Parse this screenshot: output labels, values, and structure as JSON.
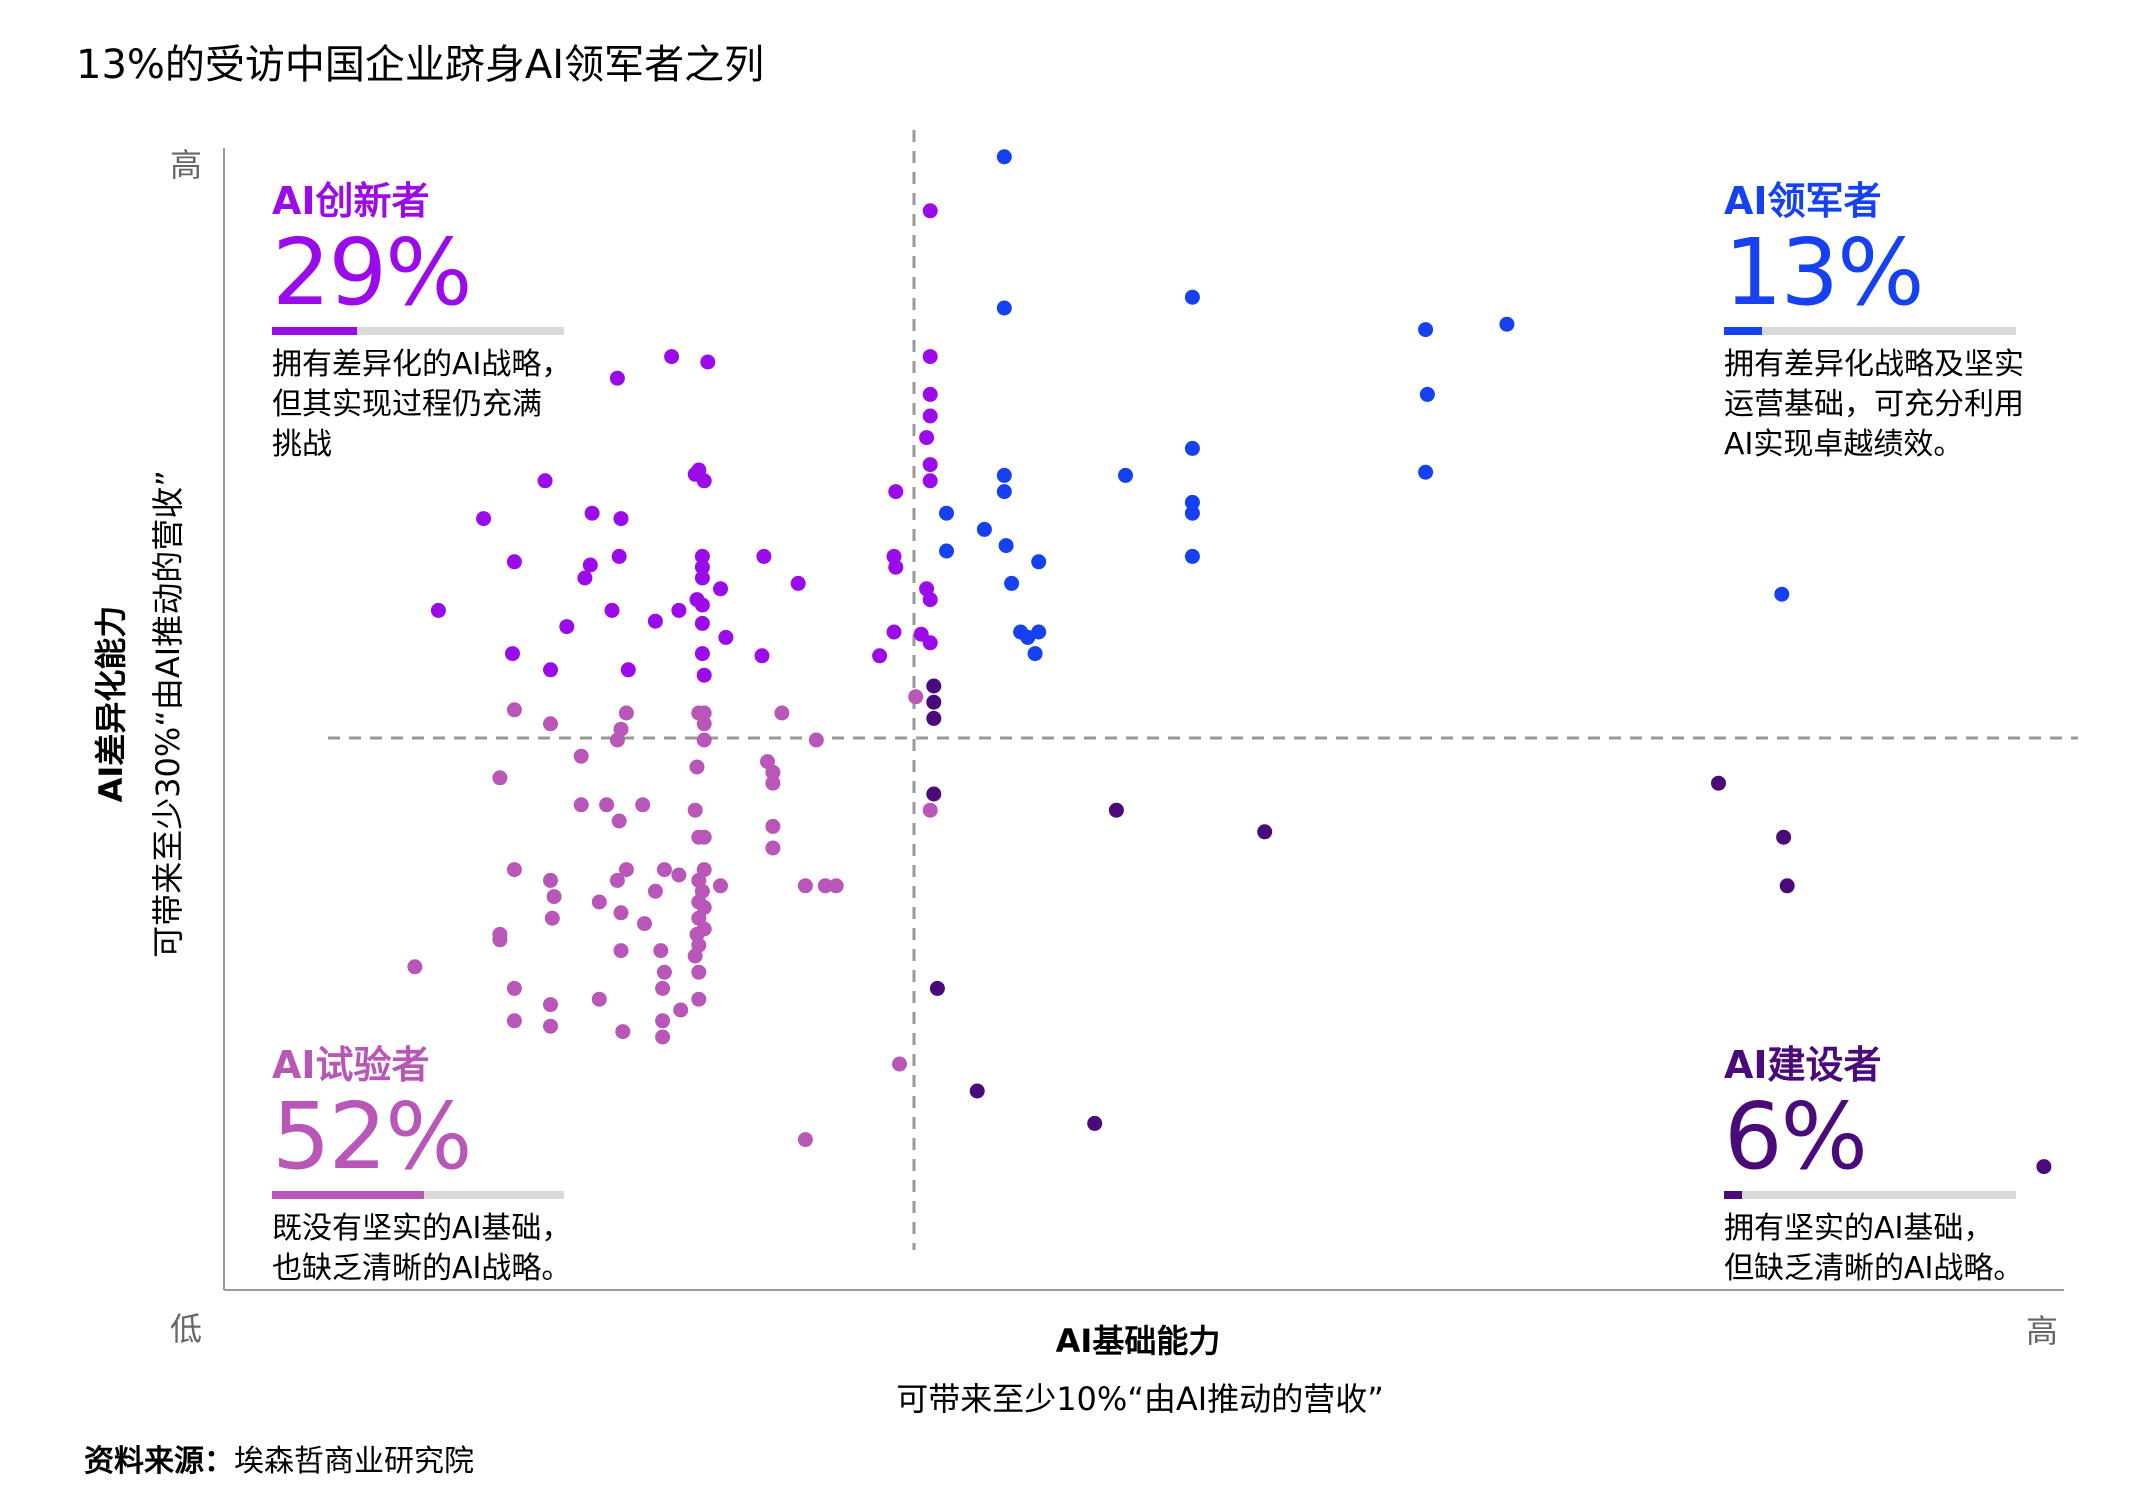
{
  "title": "13%的受访中国企业跻身AI领军者之列",
  "colors": {
    "innovator": "#9b0bea",
    "leader": "#1541f0",
    "experimenter": "#b857b8",
    "builder": "#4a0a7a",
    "bar_bg": "#d9d9d9",
    "divider": "#999999",
    "axis": "#999999"
  },
  "quadrants": {
    "innovator": {
      "label": "AI创新者",
      "pct": "29%",
      "share": 0.29,
      "desc": [
        "拥有差异化的AI战略，",
        "但其实现过程仍充满",
        "挑战"
      ]
    },
    "leader": {
      "label": "AI领军者",
      "pct": "13%",
      "share": 0.13,
      "desc": [
        "拥有差异化战略及坚实",
        "运营基础，可充分利用",
        "AI实现卓越绩效。"
      ]
    },
    "experimenter": {
      "label": "AI试验者",
      "pct": "52%",
      "share": 0.52,
      "desc": [
        "既没有坚实的AI基础，",
        "也缺乏清晰的AI战略。"
      ]
    },
    "builder": {
      "label": "AI建设者",
      "pct": "6%",
      "share": 0.06,
      "desc": [
        "拥有坚实的AI基础，",
        "但缺乏清晰的AI战略。"
      ]
    }
  },
  "axes": {
    "y_high": "高",
    "low": "低",
    "x_high": "高",
    "y_label_bold": "AI差异化能力",
    "y_label_sub": "可带来至少30%“由AI推动的营收”",
    "x_label_bold": "AI基础能力",
    "x_label_sub": "可带来至少10%“由AI推动的营收”"
  },
  "source": {
    "label": "资料来源：",
    "text": "埃森哲商业研究院"
  },
  "chart_data": {
    "type": "scatter",
    "title": "13%的受访中国企业跻身AI领军者之列",
    "xlabel": "AI基础能力",
    "ylabel": "AI差异化能力",
    "xlim": [
      0,
      100
    ],
    "ylim": [
      0,
      100
    ],
    "divider": {
      "x": 37.5,
      "y": 48.5
    },
    "series": [
      {
        "name": "AI创新者",
        "group": "innovator",
        "points": [
          [
            37.4,
            94
          ],
          [
            23.1,
            80.5
          ],
          [
            25.1,
            80
          ],
          [
            20.1,
            78.5
          ],
          [
            37.4,
            80.5
          ],
          [
            37.4,
            77
          ],
          [
            37.4,
            75
          ],
          [
            37.2,
            73
          ],
          [
            37.4,
            70.5
          ],
          [
            16.1,
            69
          ],
          [
            24.4,
            69.6
          ],
          [
            24.9,
            69
          ],
          [
            24.6,
            70
          ],
          [
            35.5,
            68
          ],
          [
            37.4,
            69
          ],
          [
            20.3,
            65.5
          ],
          [
            12.7,
            65.5
          ],
          [
            18.7,
            66
          ],
          [
            14.4,
            61.5
          ],
          [
            18.6,
            61.2
          ],
          [
            20.2,
            62
          ],
          [
            24.8,
            62
          ],
          [
            24.8,
            61
          ],
          [
            28.2,
            62
          ],
          [
            35.4,
            62
          ],
          [
            35.5,
            61
          ],
          [
            18.3,
            60
          ],
          [
            24.8,
            60
          ],
          [
            25.8,
            59
          ],
          [
            37.2,
            59
          ],
          [
            30.1,
            59.5
          ],
          [
            37.4,
            58
          ],
          [
            10.2,
            57
          ],
          [
            19.8,
            57
          ],
          [
            23.5,
            57
          ],
          [
            24.8,
            57.5
          ],
          [
            24.5,
            58
          ],
          [
            17.3,
            55.5
          ],
          [
            22.2,
            56
          ],
          [
            24.8,
            55.8
          ],
          [
            35.4,
            55
          ],
          [
            26.1,
            54.5
          ],
          [
            36.9,
            54.8
          ],
          [
            14.3,
            53
          ],
          [
            24.8,
            53
          ],
          [
            28.1,
            52.8
          ],
          [
            34.6,
            52.8
          ],
          [
            37.4,
            54
          ],
          [
            16.4,
            51.5
          ],
          [
            20.7,
            51.5
          ],
          [
            24.9,
            51
          ]
        ]
      },
      {
        "name": "AI领军者",
        "group": "leader",
        "points": [
          [
            41.5,
            99
          ],
          [
            41.5,
            85
          ],
          [
            51.9,
            86
          ],
          [
            64.8,
            83
          ],
          [
            64.9,
            77
          ],
          [
            69.3,
            83.5
          ],
          [
            51.9,
            72
          ],
          [
            41.5,
            69.5
          ],
          [
            41.5,
            68
          ],
          [
            48.2,
            69.5
          ],
          [
            64.8,
            69.8
          ],
          [
            51.9,
            67
          ],
          [
            51.9,
            66
          ],
          [
            38.3,
            66
          ],
          [
            40.4,
            64.5
          ],
          [
            41.6,
            63
          ],
          [
            38.3,
            62.5
          ],
          [
            43.4,
            61.5
          ],
          [
            51.9,
            62
          ],
          [
            41.9,
            59.5
          ],
          [
            84.5,
            58.5
          ],
          [
            42.4,
            55
          ],
          [
            42.8,
            54.5
          ],
          [
            43.4,
            55
          ],
          [
            43.2,
            53
          ]
        ]
      },
      {
        "name": "AI试验者",
        "group": "experimenter",
        "points": [
          [
            36.6,
            49
          ],
          [
            14.4,
            47.8
          ],
          [
            20.6,
            47.5
          ],
          [
            24.6,
            47.5
          ],
          [
            24.9,
            47.5
          ],
          [
            29.2,
            47.5
          ],
          [
            16.4,
            46.5
          ],
          [
            20.3,
            46
          ],
          [
            24.9,
            46.5
          ],
          [
            20.1,
            45
          ],
          [
            24.9,
            45
          ],
          [
            31.1,
            45
          ],
          [
            18.1,
            43.5
          ],
          [
            24.5,
            42.5
          ],
          [
            28.4,
            43
          ],
          [
            28.7,
            42
          ],
          [
            13.6,
            41.5
          ],
          [
            28.7,
            41
          ],
          [
            18.1,
            39
          ],
          [
            19.5,
            39
          ],
          [
            21.5,
            39
          ],
          [
            24.4,
            38.5
          ],
          [
            37.4,
            38.5
          ],
          [
            20.2,
            37.5
          ],
          [
            28.7,
            37
          ],
          [
            24.6,
            36
          ],
          [
            24.9,
            36
          ],
          [
            28.7,
            35
          ],
          [
            14.4,
            33
          ],
          [
            16.4,
            32
          ],
          [
            20.1,
            32
          ],
          [
            20.6,
            33
          ],
          [
            22.7,
            33
          ],
          [
            24.9,
            33
          ],
          [
            23.5,
            32.5
          ],
          [
            24.6,
            32
          ],
          [
            24.8,
            31
          ],
          [
            25.8,
            31.5
          ],
          [
            30.5,
            31.5
          ],
          [
            31.6,
            31.5
          ],
          [
            32.2,
            31.5
          ],
          [
            16.6,
            30.5
          ],
          [
            19.1,
            30
          ],
          [
            22.2,
            31
          ],
          [
            24.6,
            30
          ],
          [
            24.9,
            29.5
          ],
          [
            20.3,
            29
          ],
          [
            16.5,
            28.5
          ],
          [
            21.6,
            28
          ],
          [
            24.6,
            28.5
          ],
          [
            24.9,
            27.5
          ],
          [
            13.6,
            27
          ],
          [
            13.6,
            26.5
          ],
          [
            24.5,
            27
          ],
          [
            24.6,
            26
          ],
          [
            20.3,
            25.5
          ],
          [
            22.5,
            25.5
          ],
          [
            24.4,
            25
          ],
          [
            8.9,
            24
          ],
          [
            22.7,
            23.5
          ],
          [
            24.6,
            23.5
          ],
          [
            22.6,
            22
          ],
          [
            24.6,
            21
          ],
          [
            14.4,
            22
          ],
          [
            16.4,
            20.5
          ],
          [
            19.1,
            21
          ],
          [
            23.6,
            20
          ],
          [
            22.6,
            19
          ],
          [
            14.4,
            19
          ],
          [
            16.4,
            18.5
          ],
          [
            20.4,
            18
          ],
          [
            22.6,
            17.5
          ],
          [
            35.7,
            15
          ],
          [
            30.5,
            8
          ]
        ]
      },
      {
        "name": "AI建设者",
        "group": "builder",
        "points": [
          [
            37.6,
            50
          ],
          [
            37.6,
            48.5
          ],
          [
            37.6,
            47
          ],
          [
            37.6,
            40
          ],
          [
            47.7,
            38.5
          ],
          [
            55.9,
            36.5
          ],
          [
            81,
            41
          ],
          [
            84.6,
            36
          ],
          [
            84.8,
            31.5
          ],
          [
            37.8,
            22
          ],
          [
            40,
            12.5
          ],
          [
            46.5,
            9.5
          ],
          [
            99,
            5.5
          ]
        ]
      }
    ]
  }
}
